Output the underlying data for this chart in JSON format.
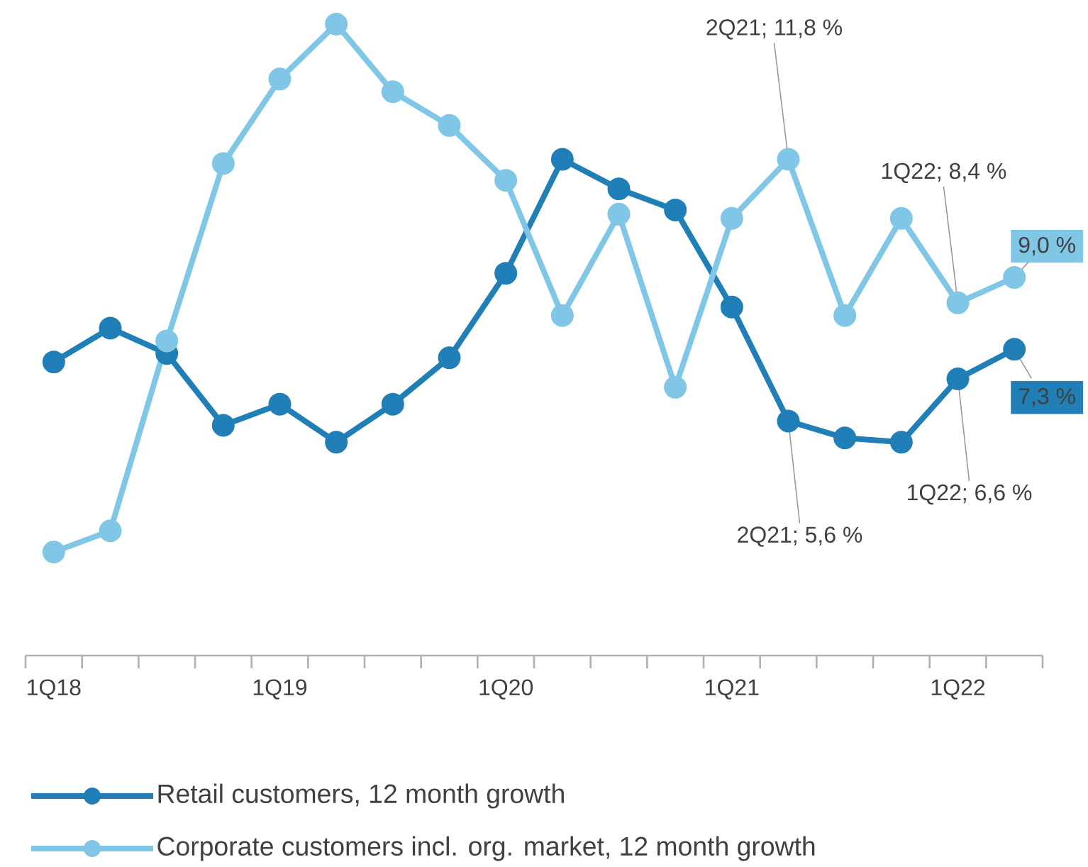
{
  "chart_data": {
    "type": "line",
    "categories": [
      "1Q18",
      null,
      null,
      null,
      "1Q19",
      null,
      null,
      null,
      "1Q20",
      null,
      null,
      null,
      "1Q21",
      null,
      null,
      null,
      "1Q22",
      null
    ],
    "series": [
      {
        "name": "Retail customers, 12 month growth",
        "color": "#1f7fb6",
        "values": [
          7.0,
          7.8,
          7.2,
          5.5,
          6.0,
          5.1,
          6.0,
          7.1,
          9.1,
          11.8,
          11.1,
          10.6,
          8.3,
          5.6,
          5.2,
          5.1,
          6.6,
          7.3
        ],
        "value_labels": [
          null,
          null,
          null,
          null,
          null,
          null,
          null,
          null,
          null,
          null,
          null,
          null,
          null,
          "2Q21; 5,6 %",
          null,
          null,
          "1Q22; 6,6 %",
          "7,3 %"
        ]
      },
      {
        "name": "Corporate customers incl. org. market, 12 month growth",
        "color": "#80c6e6",
        "values": [
          2.5,
          3.0,
          7.5,
          11.7,
          13.7,
          15.0,
          13.4,
          12.6,
          11.3,
          8.1,
          10.5,
          6.4,
          10.4,
          11.8,
          8.1,
          10.4,
          8.4,
          9.0
        ],
        "value_labels": [
          null,
          null,
          null,
          null,
          null,
          null,
          null,
          null,
          null,
          null,
          null,
          null,
          null,
          "2Q21; 11,8 %",
          null,
          null,
          "1Q22; 8,4 %",
          "9,0 %"
        ]
      }
    ],
    "tick_labels": "x",
    "grid": false,
    "legend": "bottom",
    "marker": "circle",
    "line_style": "solid"
  }
}
